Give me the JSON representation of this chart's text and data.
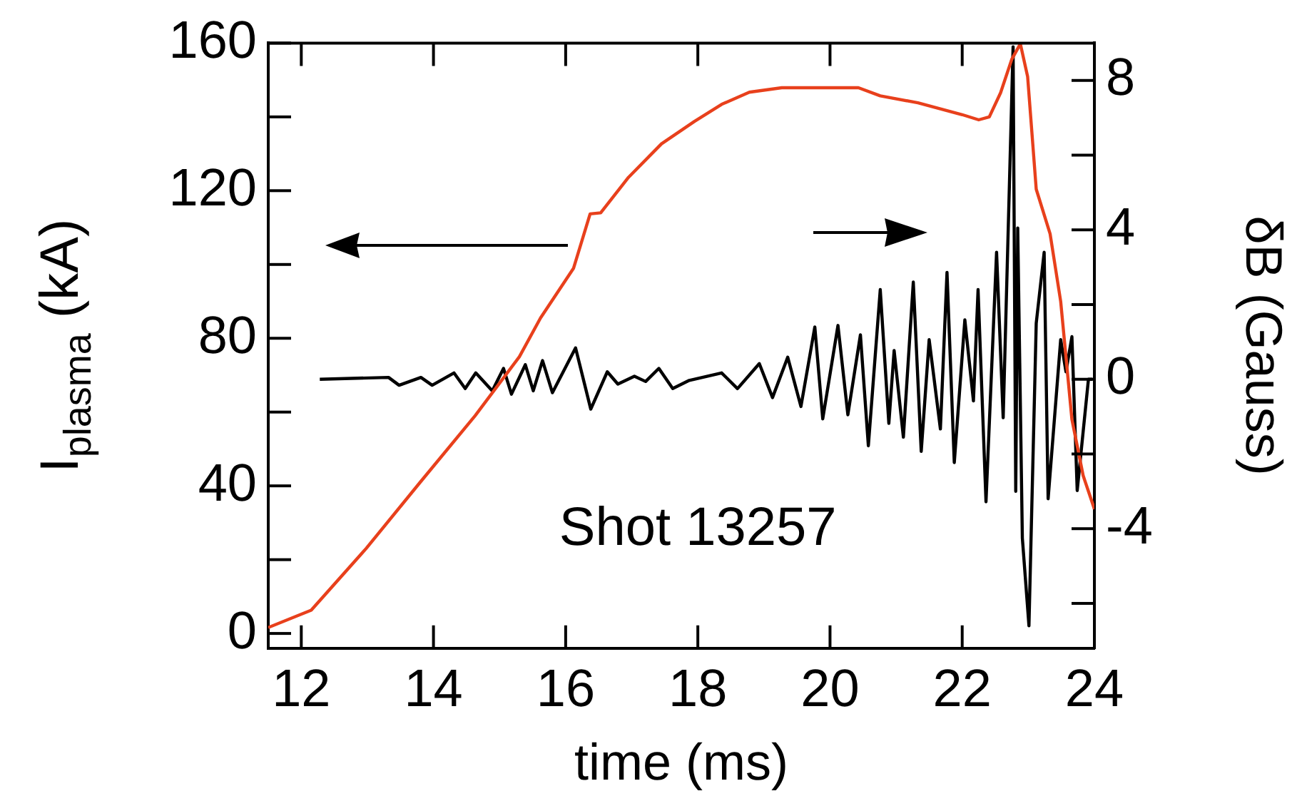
{
  "chart_data": {
    "type": "line",
    "xlabel": "time (ms)",
    "ylabel": "I$_{plasma}$ (kA)",
    "y2label": "δB (Gauss)",
    "annotations": [
      "Shot 13257"
    ],
    "xlim": [
      11.5,
      24
    ],
    "xticks": [
      12,
      14,
      16,
      18,
      20,
      22,
      24
    ],
    "ylim": [
      -4,
      160
    ],
    "yticks": [
      0,
      {
        "value": 20,
        "label": null
      },
      40,
      {
        "value": 60,
        "label": null
      },
      80,
      {
        "value": 100,
        "label": null
      },
      120,
      {
        "value": 140,
        "label": null
      },
      160
    ],
    "y2lim": [
      -7.2,
      9
    ],
    "y2ticks": [
      {
        "value": -6,
        "label": null
      },
      -4,
      {
        "value": -2,
        "label": null
      },
      0,
      {
        "value": 2,
        "label": null
      },
      4,
      {
        "value": 6,
        "label": null
      },
      8
    ],
    "series": [
      {
        "color": "#e8401c",
        "axis": "y",
        "x": [
          11.5,
          12.15,
          12.98,
          13.8,
          14.63,
          15.3,
          15.62,
          16.12,
          16.37,
          16.53,
          16.95,
          17.45,
          17.95,
          18.36,
          18.78,
          19.27,
          20.43,
          20.76,
          21.33,
          22.0,
          22.25,
          22.41,
          22.58,
          22.75,
          22.88,
          22.99,
          23.12,
          23.33,
          23.49,
          23.66,
          23.83,
          24.0
        ],
        "values": [
          1.6,
          6.3,
          23,
          41,
          59,
          75,
          85.5,
          99,
          113.7,
          114,
          123.6,
          132.7,
          138.8,
          143.4,
          146.7,
          147.9,
          147.9,
          145.7,
          143.8,
          140.6,
          139.2,
          140,
          146.5,
          155.6,
          159.8,
          150.9,
          120.4,
          108.3,
          90,
          58,
          42.8,
          33.7
        ]
      },
      {
        "color": "#000000",
        "axis": "y2",
        "x": [
          12.28,
          13.32,
          13.48,
          13.81,
          13.98,
          14.31,
          14.48,
          14.64,
          14.89,
          15.06,
          15.18,
          15.39,
          15.51,
          15.65,
          15.8,
          16.15,
          16.38,
          16.63,
          16.79,
          17.04,
          17.21,
          17.41,
          17.62,
          17.87,
          18.36,
          18.6,
          18.93,
          19.13,
          19.36,
          19.56,
          19.77,
          19.89,
          20.12,
          20.27,
          20.46,
          20.58,
          20.76,
          20.89,
          20.97,
          21.11,
          21.26,
          21.38,
          21.5,
          21.67,
          21.77,
          21.88,
          22.04,
          22.17,
          22.24,
          22.36,
          22.52,
          22.62,
          22.77,
          22.81,
          22.84,
          22.91,
          23.01,
          23.12,
          23.24,
          23.3,
          23.49,
          23.57,
          23.66,
          23.74,
          23.91,
          23.97
        ],
        "values": [
          0,
          0.05,
          -0.16,
          0.05,
          -0.16,
          0.17,
          -0.25,
          0.17,
          -0.31,
          0.29,
          -0.4,
          0.39,
          -0.31,
          0.5,
          -0.36,
          0.84,
          -0.8,
          0.2,
          -0.13,
          0.08,
          -0.06,
          0.29,
          -0.25,
          -0.03,
          0.17,
          -0.25,
          0.42,
          -0.49,
          0.59,
          -0.73,
          1.4,
          -1.06,
          1.44,
          -0.95,
          1.19,
          -1.78,
          2.4,
          -1.18,
          0.77,
          -1.55,
          2.6,
          -1.93,
          1.06,
          -1.33,
          2.86,
          -2.23,
          1.59,
          -0.58,
          2.4,
          -3.28,
          3.4,
          -1.03,
          8.9,
          -3,
          4.05,
          -4.25,
          -6.6,
          1.5,
          3.4,
          -3.2,
          1.06,
          0.2,
          1.14,
          -2.98,
          0,
          0
        ]
      }
    ]
  }
}
